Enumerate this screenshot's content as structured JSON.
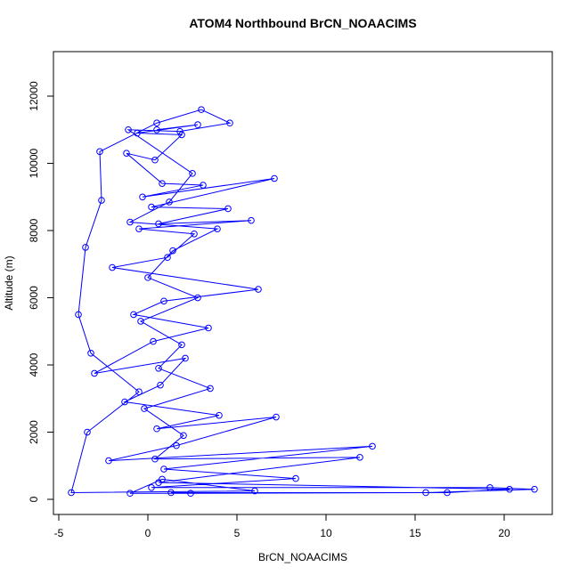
{
  "chart_data": {
    "type": "line",
    "title": "ATOM4 Northbound BrCN_NOAACIMS",
    "x_label": "BrCN_NOAACIMS",
    "y_label": "Altitude (m)",
    "color": "#0000ff",
    "marker": "open-circle",
    "xlim": [
      -5.3,
      22.7
    ],
    "ylim": [
      -450,
      13325
    ],
    "xticks": [
      -5,
      0,
      5,
      10,
      15,
      20
    ],
    "yticks": [
      0,
      2000,
      4000,
      6000,
      8000,
      10000,
      12000
    ],
    "x": [
      0.5,
      2.8,
      -0.6,
      1.9,
      0.4,
      -1.2,
      0.8,
      3.1,
      -0.3,
      7.1,
      0.2,
      4.5,
      0.6,
      5.8,
      -0.5,
      2.6,
      1.1,
      -2.0,
      6.2,
      0.9,
      -0.8,
      3.4,
      0.3,
      -3.0,
      2.1,
      0.7,
      -1.3,
      4.0,
      0.5,
      7.2,
      1.6,
      -2.2,
      12.6,
      0.9,
      8.3,
      0.2,
      19.2,
      21.7,
      15.6,
      2.4,
      -1.0,
      0.8,
      6.0,
      -4.3,
      -3.4,
      -0.5,
      -3.2,
      -3.9,
      -3.5,
      -2.6,
      -2.7,
      0.5,
      3.0,
      4.6,
      1.8,
      -1.1,
      2.5,
      1.2,
      -1.0,
      3.9,
      1.4,
      0.0,
      2.8,
      -0.4,
      1.9,
      0.6,
      3.5,
      -0.2,
      2.0,
      0.4,
      11.9,
      0.6,
      20.3,
      16.8,
      1.3
    ],
    "values": [
      11000,
      11150,
      10900,
      10850,
      10100,
      10300,
      9400,
      9350,
      9000,
      9550,
      8700,
      8650,
      8200,
      8300,
      8050,
      7900,
      7200,
      6900,
      6250,
      5900,
      5500,
      5100,
      4700,
      3750,
      4200,
      3400,
      2900,
      2500,
      2100,
      2450,
      1600,
      1150,
      1580,
      900,
      620,
      350,
      350,
      300,
      200,
      180,
      180,
      600,
      250,
      200,
      2000,
      3200,
      4350,
      5500,
      7500,
      8900,
      10350,
      11200,
      11600,
      11200,
      10950,
      11000,
      9700,
      8850,
      8250,
      8050,
      7400,
      6600,
      6000,
      5300,
      4600,
      3900,
      3300,
      2700,
      1900,
      1200,
      1250,
      500,
      300,
      200,
      200
    ]
  }
}
